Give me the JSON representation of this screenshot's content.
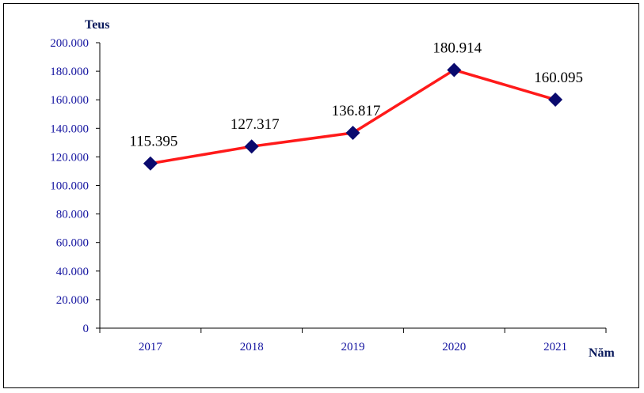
{
  "chart_data": {
    "type": "line",
    "categories": [
      "2017",
      "2018",
      "2019",
      "2020",
      "2021"
    ],
    "values": [
      115395,
      127317,
      136817,
      180914,
      160095
    ],
    "data_labels": [
      "115.395",
      "127.317",
      "136.817",
      "180.914",
      "160.095"
    ],
    "yticks": [
      {
        "value": 0,
        "label": "0"
      },
      {
        "value": 20000,
        "label": "20.000"
      },
      {
        "value": 40000,
        "label": "40.000"
      },
      {
        "value": 60000,
        "label": "60.000"
      },
      {
        "value": 80000,
        "label": "80.000"
      },
      {
        "value": 100000,
        "label": "100.000"
      },
      {
        "value": 120000,
        "label": "120.000"
      },
      {
        "value": 140000,
        "label": "140.000"
      },
      {
        "value": 160000,
        "label": "160.000"
      },
      {
        "value": 180000,
        "label": "180.000"
      },
      {
        "value": 200000,
        "label": "200.000"
      }
    ],
    "ylim": [
      0,
      200000
    ],
    "ylabel": "Teus",
    "xlabel": "Năm",
    "grid": false,
    "line_color": "#ff1a1a",
    "marker_color": "#0a0a6e",
    "marker": "diamond"
  }
}
